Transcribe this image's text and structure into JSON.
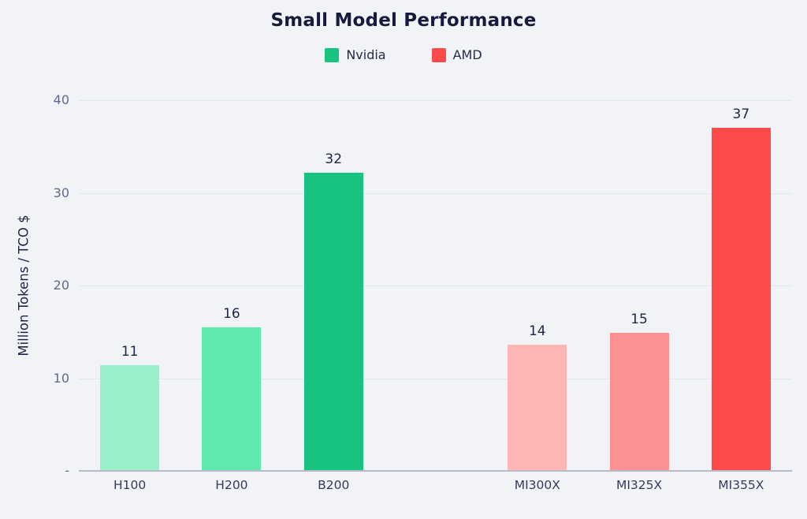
{
  "title": "Small Model Performance",
  "legend": [
    {
      "label": "Nvidia",
      "color": "#17c47f"
    },
    {
      "label": "AMD",
      "color": "#fd4b4b"
    }
  ],
  "y_axis": {
    "label": "Million Tokens / TCO $",
    "ticks": [
      {
        "value": 0,
        "label": "-"
      },
      {
        "value": 10,
        "label": "10"
      },
      {
        "value": 20,
        "label": "20"
      },
      {
        "value": 30,
        "label": "30"
      },
      {
        "value": 40,
        "label": "40"
      }
    ]
  },
  "colors": {
    "background": "#f2f3f7",
    "gridline": "#e2e5f1",
    "axis_line": "#b6bac9",
    "title_text": "#161b3d",
    "tick_text": "#62688d",
    "nvidia_accent": "#17c47f",
    "amd_accent": "#fd4b4b"
  },
  "chart_data": {
    "type": "bar",
    "title": "Small Model Performance",
    "xlabel": "",
    "ylabel": "Million Tokens / TCO $",
    "ylim": [
      0,
      40
    ],
    "yticks": [
      0,
      10,
      20,
      30,
      40
    ],
    "grid": true,
    "legend_position": "top",
    "categories": [
      "H100",
      "H200",
      "B200",
      "MI300X",
      "MI325X",
      "MI355X"
    ],
    "series": [
      {
        "name": "Nvidia",
        "values": [
          11.4,
          15.5,
          32.2,
          null,
          null,
          null
        ]
      },
      {
        "name": "AMD",
        "values": [
          null,
          null,
          null,
          13.6,
          14.9,
          37.0
        ]
      }
    ],
    "bars": [
      {
        "category": "H100",
        "series": "Nvidia",
        "value": 11.4,
        "label": "11",
        "color": "#98f0cb"
      },
      {
        "category": "H200",
        "series": "Nvidia",
        "value": 15.5,
        "label": "16",
        "color": "#60e9ad"
      },
      {
        "category": "B200",
        "series": "Nvidia",
        "value": 32.2,
        "label": "32",
        "color": "#17c47f"
      },
      {
        "category": "MI300X",
        "series": "AMD",
        "value": 13.6,
        "label": "14",
        "color": "#ffb6b6"
      },
      {
        "category": "MI325X",
        "series": "AMD",
        "value": 14.9,
        "label": "15",
        "color": "#fd9191"
      },
      {
        "category": "MI355X",
        "series": "AMD",
        "value": 37.0,
        "label": "37",
        "color": "#fd4b4b"
      }
    ]
  }
}
